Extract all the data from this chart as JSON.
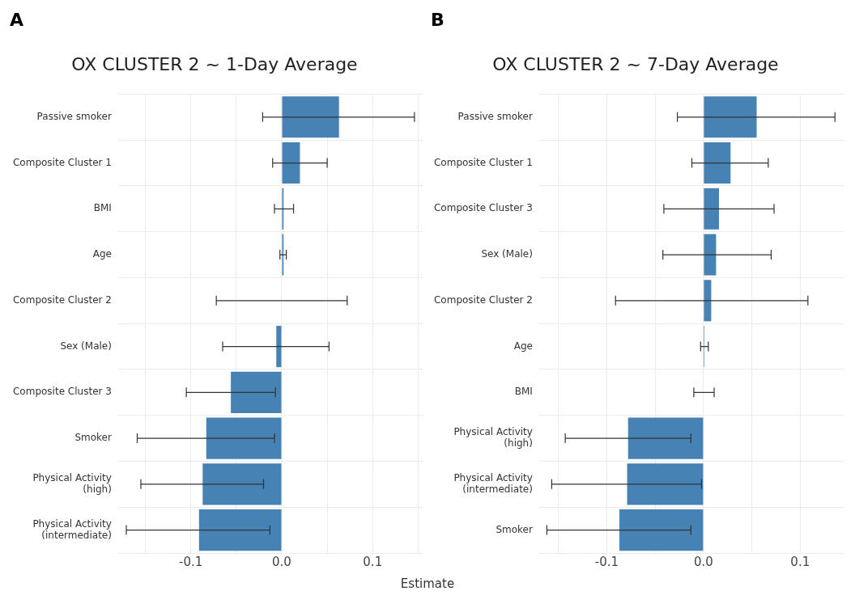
{
  "chart_data": [
    {
      "type": "bar",
      "orientation": "horizontal",
      "title": "OX CLUSTER 2 ~ 1-Day Average",
      "xlabel": "Estimate",
      "annotations": [
        "A"
      ],
      "categories": [
        "Passive smoker",
        "Composite Cluster 1",
        "BMI",
        "Age",
        "Composite Cluster 2",
        "Sex (Male)",
        "Composite Cluster 3",
        "Smoker",
        "Physical Activity\n(high)",
        "Physical Activity\n(intermediate)"
      ],
      "values": [
        0.063,
        0.02,
        0.002,
        0.002,
        0.0,
        -0.006,
        -0.056,
        -0.083,
        -0.087,
        -0.091
      ],
      "errors": [
        [
          -0.021,
          0.146
        ],
        [
          -0.01,
          0.05
        ],
        [
          -0.008,
          0.013
        ],
        [
          -0.002,
          0.005
        ],
        [
          -0.072,
          0.072
        ],
        [
          -0.065,
          0.052
        ],
        [
          -0.105,
          -0.007
        ],
        [
          -0.159,
          -0.008
        ],
        [
          -0.155,
          -0.02
        ],
        [
          -0.171,
          -0.013
        ]
      ],
      "color": "#4682b4",
      "xlim": [
        -0.18,
        0.155
      ],
      "xticks": [
        {
          "value": -0.15,
          "label": null
        },
        {
          "value": -0.1,
          "label": "-0.1"
        },
        {
          "value": -0.05,
          "label": null
        },
        {
          "value": 0,
          "label": "0.0"
        },
        {
          "value": 0.05,
          "label": null
        },
        {
          "value": 0.1,
          "label": "0.1"
        },
        {
          "value": 0.15,
          "label": null
        }
      ],
      "grid": true,
      "legend": false
    },
    {
      "type": "bar",
      "orientation": "horizontal",
      "title": "OX CLUSTER 2 ~ 7-Day Average",
      "annotations": [
        "B"
      ],
      "categories": [
        "Passive smoker",
        "Composite Cluster 1",
        "Composite Cluster 3",
        "Sex (Male)",
        "Composite Cluster 2",
        "Age",
        "BMI",
        "Physical Activity\n(high)",
        "Physical Activity\n(intermediate)",
        "Smoker"
      ],
      "values": [
        0.055,
        0.028,
        0.016,
        0.013,
        0.008,
        0.001,
        0.0,
        -0.078,
        -0.079,
        -0.087
      ],
      "errors": [
        [
          -0.027,
          0.136
        ],
        [
          -0.012,
          0.067
        ],
        [
          -0.041,
          0.073
        ],
        [
          -0.042,
          0.07
        ],
        [
          -0.091,
          0.108
        ],
        [
          -0.003,
          0.005
        ],
        [
          -0.01,
          0.011
        ],
        [
          -0.143,
          -0.013
        ],
        [
          -0.157,
          -0.002
        ],
        [
          -0.162,
          -0.013
        ]
      ],
      "color": "#4682b4",
      "xlim": [
        -0.17,
        0.145
      ],
      "xticks": [
        {
          "value": -0.15,
          "label": null
        },
        {
          "value": -0.1,
          "label": "-0.1"
        },
        {
          "value": -0.05,
          "label": null
        },
        {
          "value": 0,
          "label": "0.0"
        },
        {
          "value": 0.05,
          "label": null
        },
        {
          "value": 0.1,
          "label": "0.1"
        }
      ],
      "grid": true,
      "legend": false
    }
  ]
}
